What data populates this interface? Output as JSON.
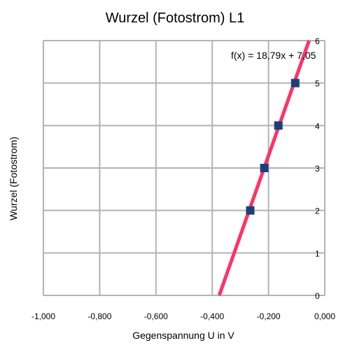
{
  "chart_data": {
    "type": "scatter",
    "title": "Wurzel (Fotostrom) L1",
    "xlabel": "Gegenspannung U in V",
    "ylabel": "Wurzel (Fotostrom)",
    "xlim": [
      -1.0,
      0.0
    ],
    "ylim": [
      0,
      6
    ],
    "x_ticks": [
      -1.0,
      -0.8,
      -0.6,
      -0.4,
      -0.2,
      0.0
    ],
    "x_tick_labels": [
      "-1,000",
      "-0,800",
      "-0,600",
      "-0,400",
      "-0,200",
      "0,000"
    ],
    "y_ticks": [
      0,
      1,
      2,
      3,
      4,
      5,
      6
    ],
    "y_tick_labels": [
      "0",
      "1",
      "2",
      "3",
      "4",
      "5",
      "6"
    ],
    "grid": true,
    "series": [
      {
        "marker": "square",
        "color": "#1f3f7a",
        "points": [
          {
            "x": -0.265,
            "y": 2.0
          },
          {
            "x": -0.215,
            "y": 3.0
          },
          {
            "x": -0.165,
            "y": 4.0
          },
          {
            "x": -0.105,
            "y": 5.0
          }
        ]
      }
    ],
    "trendline": {
      "color": "#ff3366",
      "slope": 18.79,
      "intercept": 7.05,
      "equation": "f(x) = 18,79x + 7,05"
    }
  }
}
